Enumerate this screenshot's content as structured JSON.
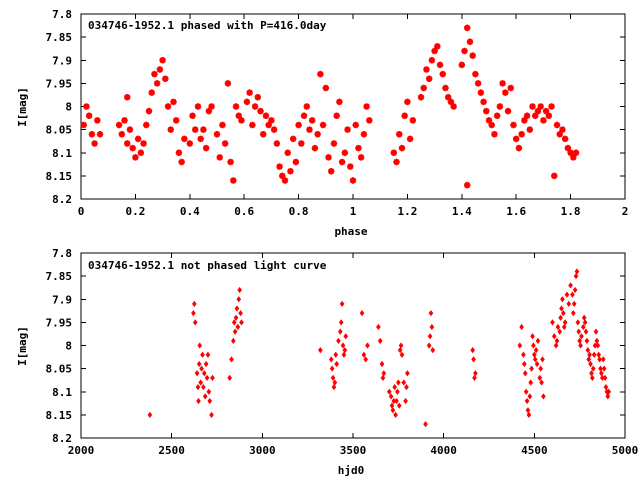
{
  "chart_data": [
    {
      "type": "scatter",
      "title": "034746-1952.1 phased with P=416.0day",
      "xlabel": "phase",
      "ylabel": "I[mag]",
      "xlim": [
        0,
        2
      ],
      "ylim": [
        8.2,
        7.8
      ],
      "y_inverted": true,
      "grid": false,
      "marker": "star",
      "color": "#ff0000",
      "xticks": [
        "0",
        "0.2",
        "0.4",
        "0.6",
        "0.8",
        "1",
        "1.2",
        "1.4",
        "1.6",
        "1.8",
        "2"
      ],
      "yticks": [
        "7.8",
        "7.85",
        "7.9",
        "7.95",
        "8",
        "8.05",
        "8.1",
        "8.15",
        "8.2"
      ],
      "points": [
        [
          0.01,
          8.04
        ],
        [
          0.02,
          8.0
        ],
        [
          0.03,
          8.02
        ],
        [
          0.04,
          8.06
        ],
        [
          0.05,
          8.08
        ],
        [
          0.06,
          8.03
        ],
        [
          0.07,
          8.06
        ],
        [
          0.14,
          8.04
        ],
        [
          0.15,
          8.06
        ],
        [
          0.16,
          8.03
        ],
        [
          0.17,
          8.08
        ],
        [
          0.17,
          7.98
        ],
        [
          0.18,
          8.05
        ],
        [
          0.19,
          8.09
        ],
        [
          0.2,
          8.11
        ],
        [
          0.21,
          8.07
        ],
        [
          0.22,
          8.1
        ],
        [
          0.23,
          8.08
        ],
        [
          0.24,
          8.04
        ],
        [
          0.25,
          8.01
        ],
        [
          0.26,
          7.97
        ],
        [
          0.27,
          7.93
        ],
        [
          0.28,
          7.95
        ],
        [
          0.29,
          7.92
        ],
        [
          0.3,
          7.9
        ],
        [
          0.31,
          7.94
        ],
        [
          0.32,
          8.0
        ],
        [
          0.33,
          8.05
        ],
        [
          0.34,
          7.99
        ],
        [
          0.35,
          8.03
        ],
        [
          0.36,
          8.1
        ],
        [
          0.37,
          8.12
        ],
        [
          0.38,
          8.07
        ],
        [
          0.4,
          8.08
        ],
        [
          0.41,
          8.02
        ],
        [
          0.42,
          8.05
        ],
        [
          0.43,
          8.0
        ],
        [
          0.44,
          8.07
        ],
        [
          0.45,
          8.05
        ],
        [
          0.46,
          8.09
        ],
        [
          0.47,
          8.01
        ],
        [
          0.48,
          8.0
        ],
        [
          0.5,
          8.06
        ],
        [
          0.51,
          8.11
        ],
        [
          0.52,
          8.04
        ],
        [
          0.53,
          8.08
        ],
        [
          0.54,
          7.95
        ],
        [
          0.55,
          8.12
        ],
        [
          0.56,
          8.16
        ],
        [
          0.57,
          8.0
        ],
        [
          0.58,
          8.02
        ],
        [
          0.59,
          8.03
        ],
        [
          0.61,
          7.99
        ],
        [
          0.62,
          7.97
        ],
        [
          0.63,
          8.04
        ],
        [
          0.64,
          8.0
        ],
        [
          0.65,
          7.98
        ],
        [
          0.66,
          8.01
        ],
        [
          0.67,
          8.06
        ],
        [
          0.68,
          8.02
        ],
        [
          0.69,
          8.04
        ],
        [
          0.7,
          8.03
        ],
        [
          0.71,
          8.05
        ],
        [
          0.72,
          8.08
        ],
        [
          0.73,
          8.13
        ],
        [
          0.74,
          8.15
        ],
        [
          0.75,
          8.16
        ],
        [
          0.76,
          8.1
        ],
        [
          0.77,
          8.14
        ],
        [
          0.78,
          8.07
        ],
        [
          0.79,
          8.12
        ],
        [
          0.8,
          8.04
        ],
        [
          0.81,
          8.08
        ],
        [
          0.82,
          8.02
        ],
        [
          0.83,
          8.0
        ],
        [
          0.84,
          8.05
        ],
        [
          0.85,
          8.03
        ],
        [
          0.86,
          8.09
        ],
        [
          0.87,
          8.06
        ],
        [
          0.88,
          7.93
        ],
        [
          0.89,
          8.04
        ],
        [
          0.9,
          7.96
        ],
        [
          0.91,
          8.11
        ],
        [
          0.92,
          8.14
        ],
        [
          0.93,
          8.08
        ],
        [
          0.94,
          8.02
        ],
        [
          0.95,
          7.99
        ],
        [
          0.96,
          8.12
        ],
        [
          0.97,
          8.1
        ],
        [
          0.98,
          8.05
        ],
        [
          0.99,
          8.13
        ],
        [
          1.0,
          8.16
        ],
        [
          1.01,
          8.04
        ],
        [
          1.02,
          8.09
        ],
        [
          1.03,
          8.11
        ],
        [
          1.04,
          8.06
        ],
        [
          1.05,
          8.0
        ],
        [
          1.06,
          8.03
        ],
        [
          1.15,
          8.1
        ],
        [
          1.16,
          8.12
        ],
        [
          1.17,
          8.06
        ],
        [
          1.18,
          8.09
        ],
        [
          1.19,
          8.02
        ],
        [
          1.2,
          7.99
        ],
        [
          1.21,
          8.07
        ],
        [
          1.22,
          8.03
        ],
        [
          1.25,
          7.98
        ],
        [
          1.26,
          7.96
        ],
        [
          1.27,
          7.92
        ],
        [
          1.28,
          7.94
        ],
        [
          1.29,
          7.9
        ],
        [
          1.3,
          7.88
        ],
        [
          1.31,
          7.87
        ],
        [
          1.32,
          7.91
        ],
        [
          1.33,
          7.93
        ],
        [
          1.34,
          7.96
        ],
        [
          1.35,
          7.98
        ],
        [
          1.36,
          7.99
        ],
        [
          1.37,
          8.0
        ],
        [
          1.4,
          7.91
        ],
        [
          1.41,
          7.88
        ],
        [
          1.42,
          7.83
        ],
        [
          1.43,
          7.86
        ],
        [
          1.44,
          7.89
        ],
        [
          1.45,
          7.93
        ],
        [
          1.46,
          7.95
        ],
        [
          1.47,
          7.97
        ],
        [
          1.48,
          7.99
        ],
        [
          1.49,
          8.01
        ],
        [
          1.5,
          8.03
        ],
        [
          1.51,
          8.04
        ],
        [
          1.52,
          8.06
        ],
        [
          1.53,
          8.02
        ],
        [
          1.54,
          8.0
        ],
        [
          1.55,
          7.95
        ],
        [
          1.56,
          7.97
        ],
        [
          1.57,
          8.01
        ],
        [
          1.58,
          7.96
        ],
        [
          1.59,
          8.04
        ],
        [
          1.6,
          8.07
        ],
        [
          1.61,
          8.09
        ],
        [
          1.62,
          8.06
        ],
        [
          1.63,
          8.03
        ],
        [
          1.64,
          8.02
        ],
        [
          1.65,
          8.05
        ],
        [
          1.66,
          8.0
        ],
        [
          1.67,
          8.02
        ],
        [
          1.68,
          8.01
        ],
        [
          1.69,
          8.0
        ],
        [
          1.7,
          8.03
        ],
        [
          1.71,
          8.01
        ],
        [
          1.72,
          8.02
        ],
        [
          1.73,
          8.0
        ],
        [
          1.74,
          8.15
        ],
        [
          1.75,
          8.04
        ],
        [
          1.76,
          8.06
        ],
        [
          1.77,
          8.05
        ],
        [
          1.78,
          8.07
        ],
        [
          1.79,
          8.09
        ],
        [
          1.8,
          8.1
        ],
        [
          1.81,
          8.11
        ],
        [
          1.82,
          8.1
        ],
        [
          1.42,
          8.17
        ]
      ]
    },
    {
      "type": "scatter",
      "title": "034746-1952.1 not phased light curve",
      "xlabel": "hjd0",
      "ylabel": "I[mag]",
      "xlim": [
        2000,
        5000
      ],
      "ylim": [
        8.2,
        7.8
      ],
      "y_inverted": true,
      "grid": false,
      "marker": "diamond",
      "color": "#ff0000",
      "xticks": [
        "2000",
        "2500",
        "3000",
        "3500",
        "4000",
        "4500",
        "5000"
      ],
      "yticks": [
        "7.8",
        "7.85",
        "7.9",
        "7.95",
        "8",
        "8.05",
        "8.1",
        "8.15",
        "8.2"
      ],
      "points": [
        [
          2380,
          8.15
        ],
        [
          2620,
          7.93
        ],
        [
          2625,
          7.91
        ],
        [
          2630,
          7.95
        ],
        [
          2640,
          8.06
        ],
        [
          2645,
          8.09
        ],
        [
          2648,
          8.12
        ],
        [
          2652,
          8.04
        ],
        [
          2655,
          8.0
        ],
        [
          2660,
          8.08
        ],
        [
          2665,
          8.05
        ],
        [
          2670,
          8.02
        ],
        [
          2675,
          8.09
        ],
        [
          2680,
          8.06
        ],
        [
          2685,
          8.11
        ],
        [
          2690,
          8.04
        ],
        [
          2695,
          8.07
        ],
        [
          2700,
          8.02
        ],
        [
          2705,
          8.1
        ],
        [
          2710,
          8.12
        ],
        [
          2720,
          8.15
        ],
        [
          2725,
          8.07
        ],
        [
          2820,
          8.07
        ],
        [
          2830,
          8.03
        ],
        [
          2840,
          7.99
        ],
        [
          2845,
          7.95
        ],
        [
          2850,
          7.97
        ],
        [
          2855,
          7.94
        ],
        [
          2860,
          7.92
        ],
        [
          2865,
          7.96
        ],
        [
          2870,
          7.9
        ],
        [
          2875,
          7.88
        ],
        [
          2880,
          7.93
        ],
        [
          2885,
          7.95
        ],
        [
          3320,
          8.01
        ],
        [
          3380,
          8.03
        ],
        [
          3385,
          8.05
        ],
        [
          3390,
          8.07
        ],
        [
          3395,
          8.09
        ],
        [
          3400,
          8.08
        ],
        [
          3405,
          8.02
        ],
        [
          3410,
          8.04
        ],
        [
          3420,
          7.99
        ],
        [
          3430,
          7.97
        ],
        [
          3435,
          7.95
        ],
        [
          3440,
          7.91
        ],
        [
          3445,
          8.0
        ],
        [
          3450,
          8.02
        ],
        [
          3455,
          8.01
        ],
        [
          3460,
          7.98
        ],
        [
          3550,
          7.93
        ],
        [
          3560,
          8.02
        ],
        [
          3570,
          8.03
        ],
        [
          3580,
          8.0
        ],
        [
          3640,
          7.96
        ],
        [
          3650,
          7.99
        ],
        [
          3660,
          8.04
        ],
        [
          3665,
          8.07
        ],
        [
          3670,
          8.06
        ],
        [
          3700,
          8.1
        ],
        [
          3710,
          8.11
        ],
        [
          3715,
          8.13
        ],
        [
          3720,
          8.14
        ],
        [
          3725,
          8.12
        ],
        [
          3730,
          8.09
        ],
        [
          3735,
          8.15
        ],
        [
          3740,
          8.12
        ],
        [
          3745,
          8.1
        ],
        [
          3750,
          8.08
        ],
        [
          3755,
          8.13
        ],
        [
          3760,
          8.01
        ],
        [
          3765,
          8.0
        ],
        [
          3770,
          8.02
        ],
        [
          3780,
          8.08
        ],
        [
          3790,
          8.12
        ],
        [
          3795,
          8.09
        ],
        [
          3800,
          8.06
        ],
        [
          3900,
          8.17
        ],
        [
          3920,
          8.0
        ],
        [
          3925,
          7.98
        ],
        [
          3930,
          7.93
        ],
        [
          3935,
          7.96
        ],
        [
          3940,
          8.01
        ],
        [
          4160,
          8.01
        ],
        [
          4165,
          8.03
        ],
        [
          4170,
          8.07
        ],
        [
          4175,
          8.06
        ],
        [
          4420,
          8.0
        ],
        [
          4430,
          7.96
        ],
        [
          4440,
          8.02
        ],
        [
          4445,
          8.04
        ],
        [
          4450,
          8.06
        ],
        [
          4455,
          8.1
        ],
        [
          4460,
          8.12
        ],
        [
          4465,
          8.14
        ],
        [
          4470,
          8.15
        ],
        [
          4475,
          8.11
        ],
        [
          4480,
          8.08
        ],
        [
          4485,
          8.05
        ],
        [
          4490,
          7.98
        ],
        [
          4495,
          8.0
        ],
        [
          4500,
          8.02
        ],
        [
          4505,
          8.03
        ],
        [
          4510,
          8.01
        ],
        [
          4515,
          8.04
        ],
        [
          4520,
          7.99
        ],
        [
          4530,
          8.07
        ],
        [
          4535,
          8.05
        ],
        [
          4540,
          8.08
        ],
        [
          4545,
          8.03
        ],
        [
          4550,
          8.11
        ],
        [
          4600,
          7.95
        ],
        [
          4610,
          7.98
        ],
        [
          4620,
          8.0
        ],
        [
          4625,
          7.99
        ],
        [
          4630,
          7.96
        ],
        [
          4640,
          7.97
        ],
        [
          4645,
          7.94
        ],
        [
          4650,
          7.92
        ],
        [
          4655,
          7.9
        ],
        [
          4660,
          7.93
        ],
        [
          4665,
          7.96
        ],
        [
          4670,
          7.95
        ],
        [
          4680,
          7.89
        ],
        [
          4690,
          7.91
        ],
        [
          4700,
          7.87
        ],
        [
          4710,
          7.89
        ],
        [
          4715,
          7.93
        ],
        [
          4720,
          7.91
        ],
        [
          4725,
          7.88
        ],
        [
          4730,
          7.85
        ],
        [
          4735,
          7.84
        ],
        [
          4740,
          7.95
        ],
        [
          4745,
          7.97
        ],
        [
          4750,
          7.99
        ],
        [
          4755,
          8.0
        ],
        [
          4760,
          7.98
        ],
        [
          4770,
          7.96
        ],
        [
          4775,
          7.94
        ],
        [
          4780,
          7.95
        ],
        [
          4785,
          7.97
        ],
        [
          4790,
          7.99
        ],
        [
          4795,
          8.01
        ],
        [
          4800,
          8.03
        ],
        [
          4805,
          8.02
        ],
        [
          4810,
          8.04
        ],
        [
          4815,
          8.06
        ],
        [
          4820,
          8.07
        ],
        [
          4825,
          8.05
        ],
        [
          4830,
          8.02
        ],
        [
          4835,
          8.0
        ],
        [
          4840,
          7.97
        ],
        [
          4845,
          7.99
        ],
        [
          4850,
          8.0
        ],
        [
          4855,
          8.02
        ],
        [
          4860,
          8.03
        ],
        [
          4865,
          8.05
        ],
        [
          4870,
          8.06
        ],
        [
          4875,
          8.07
        ],
        [
          4880,
          8.03
        ],
        [
          4885,
          8.05
        ],
        [
          4890,
          8.07
        ],
        [
          4895,
          8.09
        ],
        [
          4900,
          8.1
        ],
        [
          4905,
          8.11
        ],
        [
          4910,
          8.1
        ]
      ]
    }
  ]
}
